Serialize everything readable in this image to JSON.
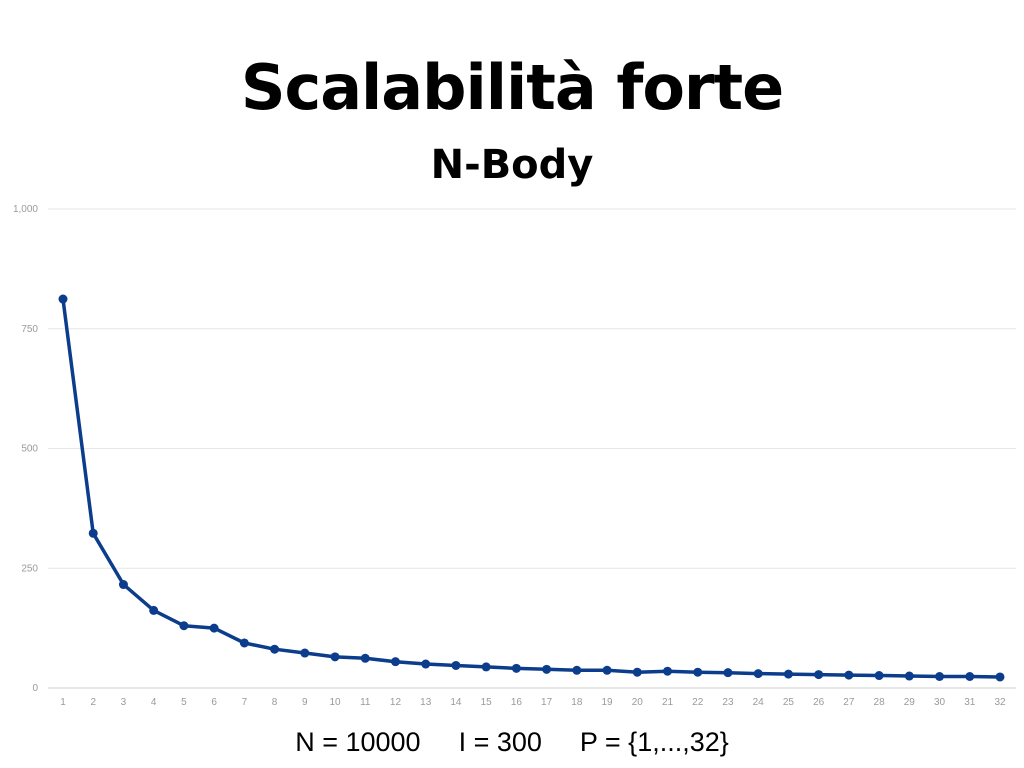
{
  "slide": {
    "title": "Scalabilità forte",
    "subtitle": "N-Body",
    "params": {
      "n": "N = 10000",
      "i": "I = 300",
      "p": "P = {1,...,32}"
    }
  },
  "colors": {
    "line": "#0b3d8c",
    "grid": "#e6e6e6",
    "axis": "#cfcfcf",
    "tick_text": "#9a9a9a"
  },
  "chart_data": {
    "type": "line",
    "title": "",
    "xlabel": "",
    "ylabel": "",
    "ylim": [
      0,
      1000
    ],
    "y_ticks": [
      0,
      250,
      500,
      750,
      1000
    ],
    "y_tick_labels": [
      "0",
      "250",
      "500",
      "750",
      "1,000"
    ],
    "grid": true,
    "categories": [
      "1",
      "2",
      "3",
      "4",
      "5",
      "6",
      "7",
      "8",
      "9",
      "10",
      "11",
      "12",
      "13",
      "14",
      "15",
      "16",
      "17",
      "18",
      "19",
      "20",
      "21",
      "22",
      "23",
      "24",
      "25",
      "26",
      "27",
      "28",
      "29",
      "30",
      "31",
      "32"
    ],
    "series": [
      {
        "values": [
          812,
          323,
          216,
          162,
          130,
          125,
          94,
          81,
          73,
          65,
          62,
          55,
          50,
          47,
          44,
          41,
          39,
          37,
          37,
          33,
          35,
          33,
          32,
          30,
          29,
          28,
          27,
          26,
          25,
          24,
          24,
          23
        ]
      }
    ]
  }
}
